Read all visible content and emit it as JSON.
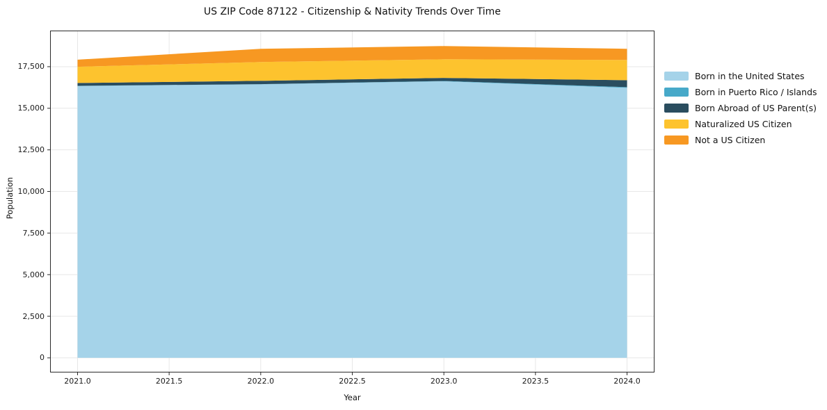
{
  "title": "US ZIP Code 87122 - Citizenship & Nativity Trends Over Time",
  "chart_data": {
    "type": "area",
    "stacked": true,
    "title": "US ZIP Code 87122 - Citizenship & Nativity Trends Over Time",
    "xlabel": "Year",
    "ylabel": "Population",
    "x": [
      2021,
      2022,
      2023,
      2024
    ],
    "series": [
      {
        "name": "Born in the United States",
        "color": "#a5d3e9",
        "values": [
          16340,
          16440,
          16620,
          16230
        ]
      },
      {
        "name": "Born in Puerto Rico / Islands",
        "color": "#47a9c9",
        "values": [
          10,
          10,
          20,
          40
        ]
      },
      {
        "name": "Born Abroad of US Parent(s)",
        "color": "#2a4d5f",
        "values": [
          170,
          200,
          185,
          420
        ]
      },
      {
        "name": "Naturalized US Citizen",
        "color": "#fdc32e",
        "values": [
          975,
          1130,
          1120,
          1215
        ]
      },
      {
        "name": "Not a US Citizen",
        "color": "#f79822",
        "values": [
          425,
          795,
          795,
          670
        ]
      }
    ],
    "xlim": [
      2020.85,
      2024.15
    ],
    "ylim": [
      -880,
      19670
    ],
    "xticks": {
      "values": [
        2021.0,
        2021.5,
        2022.0,
        2022.5,
        2023.0,
        2023.5,
        2024.0
      ],
      "labels": [
        "2021.0",
        "2021.5",
        "2022.0",
        "2022.5",
        "2023.0",
        "2023.5",
        "2024.0"
      ]
    },
    "yticks": {
      "values": [
        0,
        2500,
        5000,
        7500,
        10000,
        12500,
        15000,
        17500
      ],
      "labels": [
        "0",
        "2,500",
        "5,000",
        "7,500",
        "10,000",
        "12,500",
        "15,000",
        "17,500"
      ]
    },
    "grid": true,
    "legend_position": "right"
  },
  "style_colors": {
    "grid": "#e7e7e7",
    "spine": "#2a2a2a",
    "background": "#ffffff"
  }
}
